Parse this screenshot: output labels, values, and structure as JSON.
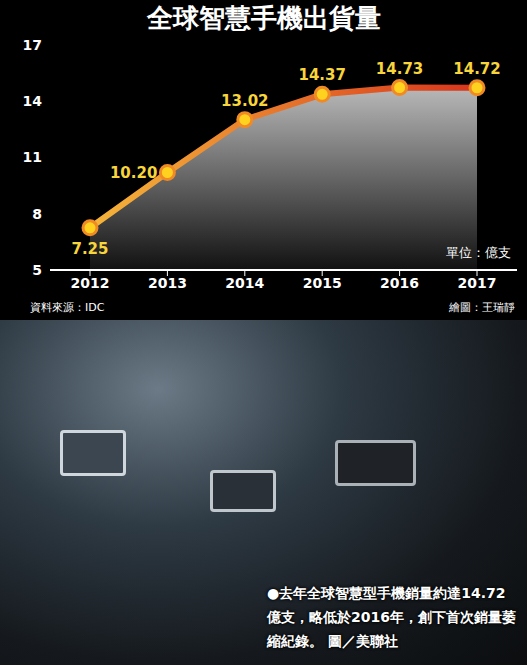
{
  "chart_data": {
    "type": "area",
    "title": "全球智慧手機出貨量",
    "categories": [
      "2012",
      "2013",
      "2014",
      "2015",
      "2016",
      "2017"
    ],
    "values": [
      7.25,
      10.2,
      13.02,
      14.37,
      14.73,
      14.72
    ],
    "value_labels": [
      "7.25",
      "10.20",
      "13.02",
      "14.37",
      "14.73",
      "14.72"
    ],
    "data_labels": true,
    "color": "#f08a24",
    "marker": "circle",
    "ylim": [
      5,
      17
    ],
    "yticks": [
      5,
      8,
      11,
      14,
      17
    ],
    "grid": false,
    "unit": "單位：億支",
    "source": "資料來源：IDC",
    "credit": "繪圖：王瑞靜",
    "caption": "●去年全球智慧型手機銷量約達14.72億支，略低於2016年，創下首次銷量萎縮紀錄。 圖／美聯社"
  }
}
